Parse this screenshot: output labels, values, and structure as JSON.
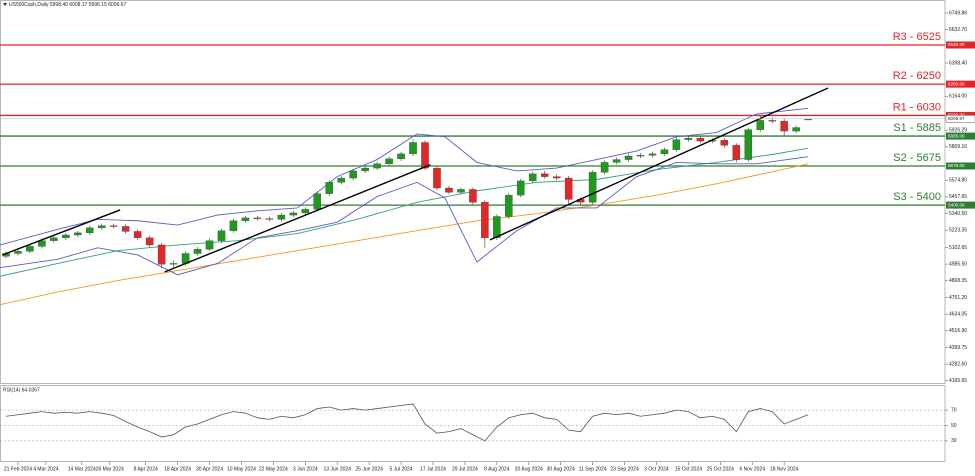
{
  "chart_data": [
    {
      "type": "candlestick",
      "title": "US500Cash,Daily  5998.40 6008.17 5996.15 6006.67",
      "up_color": "#1f9a1f",
      "down_color": "#e02828",
      "x": [
        -3,
        0,
        3,
        6,
        9,
        12,
        15,
        18,
        21,
        24,
        27,
        30,
        33,
        36,
        39,
        42,
        45,
        48,
        51,
        54,
        57,
        60,
        63,
        66,
        69,
        72,
        75,
        78,
        81,
        84,
        87,
        90,
        93,
        96,
        99,
        102,
        105,
        108,
        111,
        114,
        117,
        120,
        123,
        126,
        129,
        132,
        135,
        138,
        141,
        144,
        147,
        150,
        153,
        156,
        159,
        162,
        165,
        168,
        171,
        174,
        177,
        180,
        183,
        186,
        189,
        192,
        195,
        198
      ],
      "open": [
        5040,
        5060,
        5075,
        5110,
        5150,
        5170,
        5190,
        5205,
        5240,
        5255,
        5250,
        5215,
        5170,
        5120,
        4985,
        4990,
        5060,
        5090,
        5150,
        5220,
        5290,
        5310,
        5305,
        5300,
        5330,
        5345,
        5370,
        5480,
        5560,
        5590,
        5640,
        5660,
        5690,
        5725,
        5760,
        5840,
        5660,
        5520,
        5490,
        5510,
        5420,
        5170,
        5320,
        5470,
        5570,
        5620,
        5600,
        5590,
        5440,
        5420,
        5630,
        5700,
        5720,
        5745,
        5750,
        5760,
        5790,
        5860,
        5870,
        5850,
        5855,
        5820,
        5720,
        5930,
        5995,
        5990,
        5920,
        5998.4
      ],
      "high": [
        5075,
        5090,
        5125,
        5165,
        5185,
        5205,
        5220,
        5255,
        5270,
        5270,
        5265,
        5230,
        5185,
        5135,
        5010,
        5075,
        5105,
        5165,
        5235,
        5305,
        5325,
        5325,
        5320,
        5345,
        5360,
        5385,
        5495,
        5575,
        5605,
        5655,
        5675,
        5705,
        5740,
        5775,
        5865,
        5855,
        5675,
        5535,
        5525,
        5525,
        5435,
        5335,
        5485,
        5585,
        5635,
        5640,
        5615,
        5605,
        5455,
        5645,
        5715,
        5735,
        5760,
        5765,
        5775,
        5805,
        5875,
        5885,
        5885,
        5870,
        5870,
        5835,
        5945,
        6030,
        6015,
        6005,
        5960,
        6008.17
      ],
      "low": [
        5025,
        5045,
        5060,
        5095,
        5135,
        5155,
        5175,
        5190,
        5225,
        5235,
        5200,
        5155,
        5105,
        4955,
        4960,
        4975,
        5045,
        5075,
        5135,
        5205,
        5275,
        5290,
        5285,
        5285,
        5315,
        5330,
        5355,
        5465,
        5545,
        5575,
        5625,
        5645,
        5675,
        5710,
        5745,
        5645,
        5505,
        5475,
        5475,
        5405,
        5100,
        5155,
        5305,
        5455,
        5555,
        5585,
        5575,
        5400,
        5400,
        5405,
        5615,
        5685,
        5705,
        5730,
        5735,
        5745,
        5775,
        5845,
        5835,
        5835,
        5805,
        5700,
        5705,
        5915,
        5975,
        5880,
        5905,
        5996.15
      ],
      "close": [
        5060,
        5075,
        5110,
        5150,
        5170,
        5190,
        5205,
        5240,
        5255,
        5250,
        5215,
        5170,
        5120,
        4985,
        4990,
        5060,
        5090,
        5150,
        5220,
        5290,
        5310,
        5305,
        5300,
        5330,
        5345,
        5370,
        5480,
        5560,
        5590,
        5640,
        5660,
        5690,
        5725,
        5760,
        5840,
        5660,
        5520,
        5490,
        5510,
        5420,
        5170,
        5320,
        5470,
        5570,
        5620,
        5600,
        5590,
        5440,
        5420,
        5630,
        5700,
        5720,
        5745,
        5750,
        5760,
        5790,
        5860,
        5870,
        5850,
        5855,
        5820,
        5720,
        5930,
        5995,
        5990,
        5920,
        5945,
        6006.67
      ],
      "overlays": [
        {
          "color": "#f39a1e",
          "x": [
            -4.5,
            10,
            25,
            40,
            55,
            70,
            85,
            100,
            115,
            130,
            145,
            160,
            175,
            190,
            198
          ],
          "values": [
            4700,
            4790,
            4870,
            4940,
            5010,
            5080,
            5150,
            5220,
            5290,
            5340,
            5400,
            5470,
            5550,
            5640,
            5690
          ]
        },
        {
          "color": "#2fa27a",
          "x": [
            -4.5,
            10,
            25,
            40,
            55,
            70,
            85,
            100,
            115,
            130,
            145,
            160,
            175,
            190,
            198
          ],
          "values": [
            4900,
            4990,
            5080,
            5120,
            5150,
            5200,
            5300,
            5420,
            5500,
            5560,
            5580,
            5650,
            5700,
            5760,
            5800
          ]
        },
        {
          "color": "#5b5bc8",
          "x": [
            -4.5,
            10,
            20,
            30,
            40,
            50,
            60,
            70,
            80,
            90,
            100,
            107,
            115,
            125,
            135,
            145,
            155,
            165,
            175,
            185,
            198
          ],
          "values": [
            5120,
            5230,
            5300,
            5290,
            5260,
            5330,
            5360,
            5380,
            5600,
            5720,
            5900,
            5880,
            5700,
            5640,
            5660,
            5720,
            5780,
            5880,
            5910,
            6040,
            6080
          ]
        },
        {
          "color": "#5b5bc8",
          "x": [
            -4.5,
            10,
            20,
            30,
            40,
            50,
            60,
            70,
            80,
            90,
            100,
            107,
            115,
            125,
            135,
            145,
            155,
            165,
            175,
            185,
            198
          ],
          "values": [
            4960,
            5020,
            5100,
            5050,
            4910,
            4990,
            5170,
            5220,
            5280,
            5460,
            5560,
            5450,
            5000,
            5220,
            5380,
            5380,
            5600,
            5700,
            5690,
            5690,
            5740
          ]
        }
      ],
      "trendlines": [
        {
          "x": [
            -3.8,
            25.6
          ],
          "y": [
            5051,
            5366
          ]
        },
        {
          "x": [
            36.8,
            103.3
          ],
          "y": [
            4931,
            5683
          ]
        },
        {
          "x": [
            118.3,
            203
          ],
          "y": [
            5156,
            6223
          ]
        }
      ],
      "levels": [
        {
          "label": "R3 - 6525",
          "value": 6525,
          "tag": "6525.00",
          "color": "#e3242b"
        },
        {
          "label": "R2 - 6250",
          "value": 6250,
          "tag": "6250.00",
          "color": "#e3242b"
        },
        {
          "label": "R1 - 6030",
          "value": 6030,
          "tag": "6030.00",
          "color": "#e3242b"
        },
        {
          "label": "S1 - 5885",
          "value": 5885,
          "tag": "5885.00",
          "color": "#2e7d32"
        },
        {
          "label": "S2 - 5675",
          "value": 5675,
          "tag": "5675.00",
          "color": "#2e7d32"
        },
        {
          "label": "S3 - 5400",
          "value": 5400,
          "tag": "5400.00",
          "color": "#2e7d32"
        }
      ],
      "xlim": [
        -4.5,
        232.3
      ],
      "ylim": [
        4150,
        6841.2
      ],
      "yticks": [
        6749.86,
        {
          "value": 6632.7,
          "label": "6632.70"
        },
        {
          "value": 6398.4,
          "label": "6398.40"
        },
        {
          "value": 6164,
          "label": "6164.00"
        },
        5926.29,
        5809.16,
        {
          "value": 5574.8,
          "label": "5574.80"
        },
        5457.65,
        {
          "value": 5340.5,
          "label": "5340.50"
        },
        5223.35,
        5102.65,
        {
          "value": 4985.5,
          "label": "4985.50"
        },
        4868.35,
        {
          "value": 4751.2,
          "label": "4751.20"
        },
        4634.05,
        {
          "value": 4516.9,
          "label": "4516.90"
        },
        4399.75,
        {
          "value": 4282.6,
          "label": "4282.60"
        },
        4165.65
      ]
    },
    {
      "type": "line",
      "title": "RSI(14) 64.0367",
      "color": "#555555",
      "x": [
        -3,
        0,
        3,
        6,
        9,
        12,
        15,
        18,
        21,
        24,
        27,
        30,
        33,
        36,
        39,
        42,
        45,
        48,
        51,
        54,
        57,
        60,
        63,
        66,
        69,
        72,
        75,
        78,
        81,
        84,
        87,
        90,
        93,
        96,
        99,
        102,
        105,
        108,
        111,
        114,
        117,
        120,
        123,
        126,
        129,
        132,
        135,
        138,
        141,
        144,
        147,
        150,
        153,
        156,
        159,
        162,
        165,
        168,
        171,
        174,
        177,
        180,
        183,
        186,
        189,
        192,
        195,
        198
      ],
      "values": [
        62,
        64,
        66,
        68,
        66,
        67,
        66,
        68,
        66,
        63,
        55,
        48,
        42,
        35,
        38,
        48,
        52,
        58,
        64,
        68,
        66,
        60,
        58,
        62,
        60,
        64,
        72,
        74,
        70,
        72,
        70,
        72,
        74,
        76,
        78,
        52,
        40,
        42,
        46,
        38,
        30,
        48,
        60,
        64,
        66,
        60,
        58,
        44,
        42,
        62,
        66,
        64,
        66,
        62,
        64,
        66,
        70,
        68,
        60,
        62,
        58,
        42,
        68,
        72,
        68,
        52,
        58,
        64
      ],
      "xlim": [
        -4.5,
        232.3
      ],
      "ylim": [
        0,
        100
      ],
      "yticks": [
        70,
        50,
        30
      ],
      "grid": true,
      "xticks": [
        {
          "value": 0,
          "label": "21 Feb 2024"
        },
        {
          "value": 7,
          "label": "4 Mar 2024"
        },
        {
          "value": 16,
          "label": "14 Mar 2024"
        },
        {
          "value": 23,
          "label": "26 Mar 2024"
        },
        {
          "value": 32,
          "label": "8 Apr 2024"
        },
        {
          "value": 40,
          "label": "18 Apr 2024"
        },
        {
          "value": 48,
          "label": "30 Apr 2024"
        },
        {
          "value": 56,
          "label": "10 May 2024"
        },
        {
          "value": 64,
          "label": "22 May 2024"
        },
        {
          "value": 72,
          "label": "3 Jun 2024"
        },
        {
          "value": 80,
          "label": "13 Jun 2024"
        },
        {
          "value": 88,
          "label": "25 Jun 2024"
        },
        {
          "value": 96,
          "label": "5 Jul 2024"
        },
        {
          "value": 104,
          "label": "17 Jul 2024"
        },
        {
          "value": 112,
          "label": "29 Jul 2024"
        },
        {
          "value": 120,
          "label": "8 Aug 2024"
        },
        {
          "value": 128,
          "label": "20 Aug 2024"
        },
        {
          "value": 136,
          "label": "30 Aug 2024"
        },
        {
          "value": 144,
          "label": "11 Sep 2024"
        },
        {
          "value": 152,
          "label": "23 Sep 2024"
        },
        {
          "value": 160,
          "label": "3 Oct 2024"
        },
        {
          "value": 168,
          "label": "15 Oct 2024"
        },
        {
          "value": 176,
          "label": "25 Oct 2024"
        },
        {
          "value": 184,
          "label": "6 Nov 2024"
        },
        {
          "value": 192,
          "label": "18 Nov 2024"
        }
      ]
    }
  ]
}
